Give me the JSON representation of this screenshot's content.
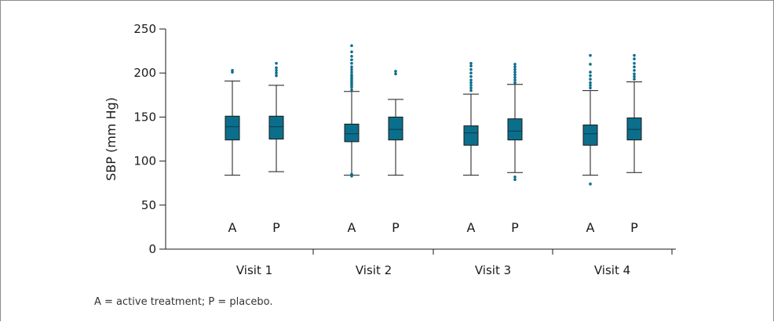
{
  "footnote": "A = active treatment; P = placebo.",
  "colors": {
    "box": "#0b6f8c",
    "outlier": "#0b6f8c",
    "line": "#1a1a1a",
    "median": "#0a3a4a"
  },
  "chart_data": {
    "type": "boxplot",
    "ylabel": "SBP (mm Hg)",
    "xlabel": "",
    "ylim": [
      0,
      250
    ],
    "yticks": [
      0,
      50,
      100,
      150,
      200,
      250
    ],
    "categories": [
      "Visit 1",
      "Visit 2",
      "Visit 3",
      "Visit 4"
    ],
    "group_labels": [
      "A",
      "P"
    ],
    "legend_text": "A = active treatment; P = placebo.",
    "series": [
      {
        "category": "Visit 1",
        "group": "A",
        "whisker_low": 84,
        "q1": 124,
        "median": 139,
        "q3": 151,
        "whisker_high": 191,
        "outliers": [
          201,
          203
        ]
      },
      {
        "category": "Visit 1",
        "group": "P",
        "whisker_low": 88,
        "q1": 125,
        "median": 139,
        "q3": 151,
        "whisker_high": 186,
        "outliers": [
          197,
          200,
          203,
          206,
          211
        ]
      },
      {
        "category": "Visit 2",
        "group": "A",
        "whisker_low": 84,
        "q1": 122,
        "median": 131,
        "q3": 142,
        "whisker_high": 179,
        "outliers": [
          83,
          85,
          181,
          184,
          186,
          188,
          190,
          192,
          194,
          196,
          198,
          201,
          204,
          207,
          211,
          215,
          219,
          224,
          231
        ]
      },
      {
        "category": "Visit 2",
        "group": "P",
        "whisker_low": 84,
        "q1": 124,
        "median": 136,
        "q3": 150,
        "whisker_high": 170,
        "outliers": [
          199,
          202
        ]
      },
      {
        "category": "Visit 3",
        "group": "A",
        "whisker_low": 84,
        "q1": 118,
        "median": 132,
        "q3": 140,
        "whisker_high": 176,
        "outliers": [
          180,
          183,
          186,
          189,
          192,
          196,
          200,
          204,
          208,
          211
        ]
      },
      {
        "category": "Visit 3",
        "group": "P",
        "whisker_low": 87,
        "q1": 124,
        "median": 134,
        "q3": 148,
        "whisker_high": 187,
        "outliers": [
          79,
          82,
          189,
          192,
          195,
          198,
          201,
          204,
          207,
          210
        ]
      },
      {
        "category": "Visit 4",
        "group": "A",
        "whisker_low": 84,
        "q1": 118,
        "median": 131,
        "q3": 141,
        "whisker_high": 180,
        "outliers": [
          74,
          183,
          186,
          189,
          193,
          197,
          201,
          210,
          220
        ]
      },
      {
        "category": "Visit 4",
        "group": "P",
        "whisker_low": 87,
        "q1": 124,
        "median": 136,
        "q3": 149,
        "whisker_high": 190,
        "outliers": [
          193,
          196,
          199,
          203,
          207,
          211,
          216,
          220
        ]
      }
    ]
  }
}
